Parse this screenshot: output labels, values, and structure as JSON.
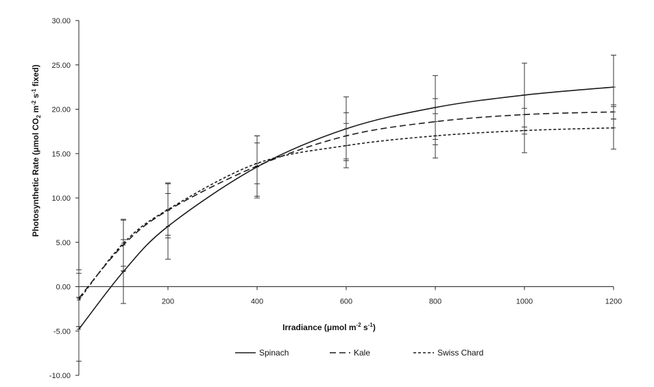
{
  "chart_data": {
    "type": "line",
    "xlabel_main": "Irradiance (μmol m",
    "xlabel_sup": "-2",
    "xlabel_mid": " s",
    "xlabel_sup2": "-1",
    "xlabel_end": ")",
    "ylabel_a": "Photosynthetic Rate  (μmol CO",
    "ylabel_sub": "2",
    "ylabel_b": " m",
    "ylabel_sup": "-2",
    "ylabel_c": " s",
    "ylabel_sup2": "-1",
    "ylabel_d": " fixed)",
    "xlim": [
      0,
      1200
    ],
    "ylim": [
      -10,
      30
    ],
    "x_ticks": [
      200,
      400,
      600,
      800,
      1000,
      1200
    ],
    "x_tick_labels": [
      "200",
      "400",
      "600",
      "800",
      "1000",
      "1200"
    ],
    "y_ticks": [
      -10,
      -5,
      0,
      5,
      10,
      15,
      20,
      25,
      30
    ],
    "y_tick_labels": [
      "-10.00",
      "-5.00",
      "0.00",
      "5.00",
      "10.00",
      "15.00",
      "20.00",
      "25.00",
      "30.00"
    ],
    "x": [
      0,
      100,
      200,
      400,
      600,
      800,
      1000,
      1200
    ],
    "series": [
      {
        "name": "Spinach",
        "dash": "solid",
        "values": [
          -4.8,
          1.7,
          6.8,
          13.5,
          17.8,
          20.2,
          21.6,
          22.5
        ],
        "errors": [
          3.6,
          3.6,
          3.7,
          3.5,
          3.6,
          3.6,
          3.6,
          3.6
        ]
      },
      {
        "name": "Kale",
        "dash": "long-dash",
        "values": [
          -1.3,
          4.7,
          8.6,
          13.6,
          17.0,
          18.6,
          19.4,
          19.7
        ],
        "errors": [
          3.2,
          2.9,
          3.1,
          3.4,
          2.6,
          2.6,
          2.2,
          0.8
        ]
      },
      {
        "name": "Swiss Chard",
        "dash": "short-dash",
        "values": [
          -1.5,
          4.9,
          8.7,
          13.9,
          15.9,
          17.0,
          17.6,
          17.9
        ],
        "errors": [
          3.0,
          2.6,
          2.9,
          2.3,
          2.5,
          2.5,
          2.5,
          2.4
        ]
      }
    ],
    "legend_position": "bottom"
  },
  "colors": {
    "line": "#1a1a1a",
    "errorbar": "#333333"
  }
}
